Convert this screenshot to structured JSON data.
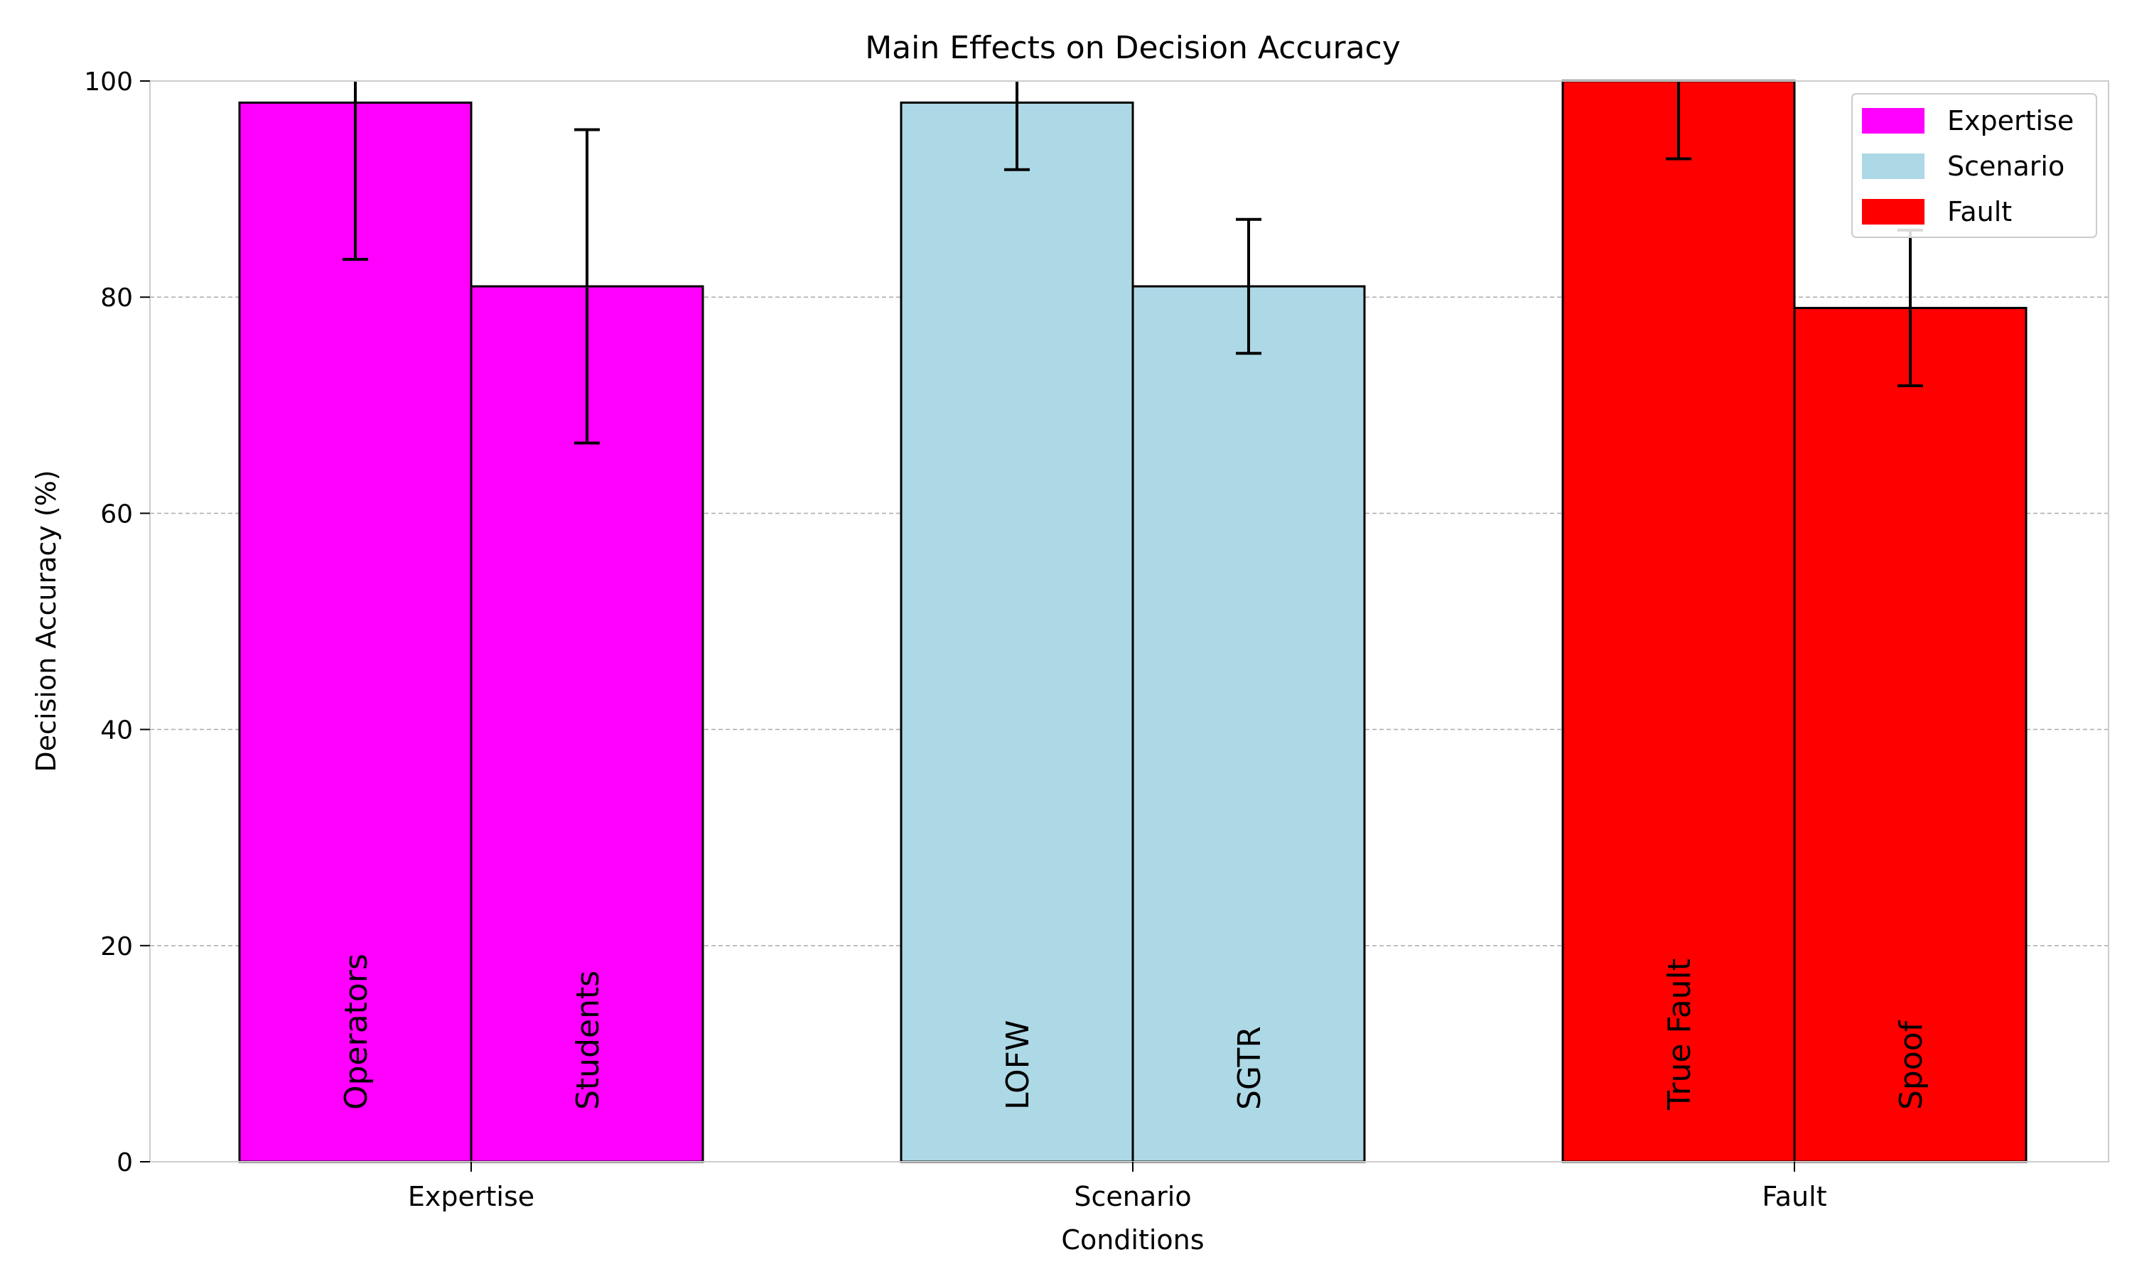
{
  "chart_data": {
    "type": "bar",
    "title": "Main Effects on Decision Accuracy",
    "xlabel": "Conditions",
    "ylabel": "Decision Accuracy (%)",
    "ylim": [
      0,
      100
    ],
    "yticks": [
      0,
      20,
      40,
      60,
      80,
      100
    ],
    "grid": "y-dashed",
    "legend_position": "top-right",
    "groups": [
      {
        "name": "Expertise",
        "color": "#ff00ff",
        "bars": [
          {
            "label": "Operators",
            "value": 98,
            "error": 14.5
          },
          {
            "label": "Students",
            "value": 81,
            "error": 14.5
          }
        ]
      },
      {
        "name": "Scenario",
        "color": "#add8e6",
        "bars": [
          {
            "label": "LOFW",
            "value": 98,
            "error": 6.2
          },
          {
            "label": "SGTR",
            "value": 81,
            "error": 6.2
          }
        ]
      },
      {
        "name": "Fault",
        "color": "#ff0000",
        "bars": [
          {
            "label": "True Fault",
            "value": 100,
            "error": 7.2
          },
          {
            "label": "Spoof",
            "value": 79,
            "error": 7.2
          }
        ]
      }
    ]
  }
}
